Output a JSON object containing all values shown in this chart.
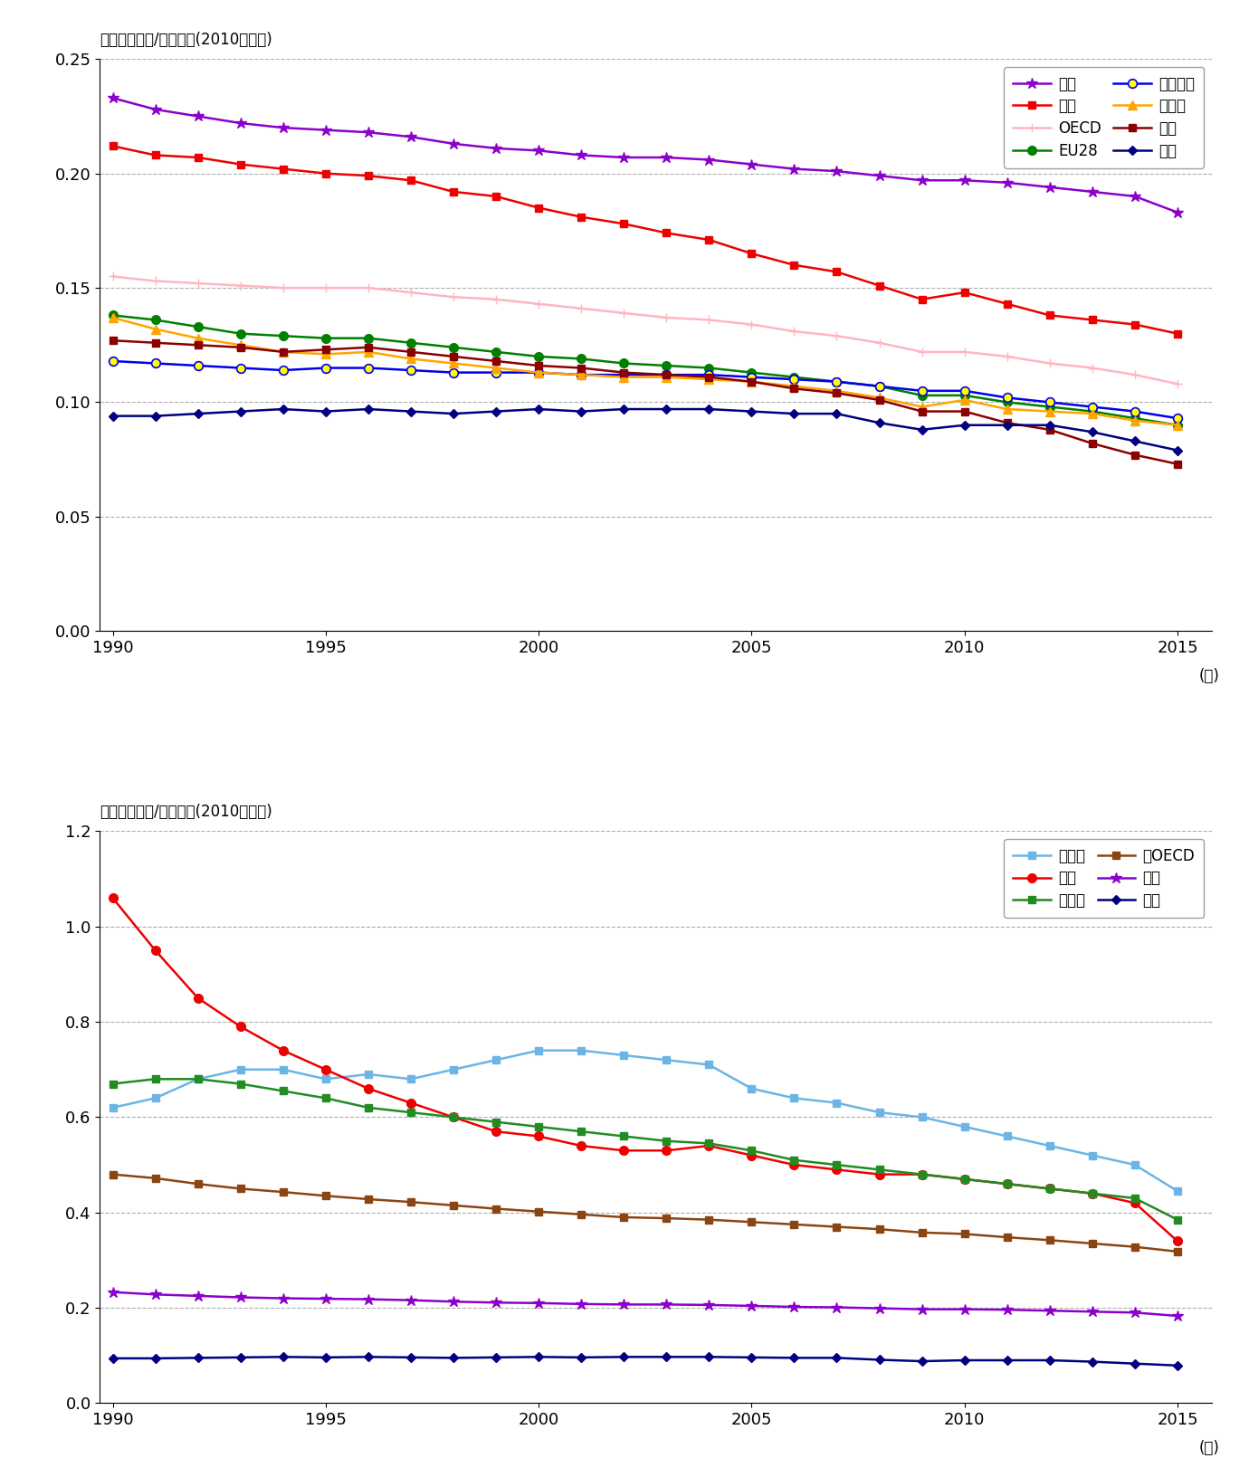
{
  "top_chart": {
    "ylabel": "石油換算トン/千米ドル(2010年基準)",
    "ylim": [
      0.0,
      0.25
    ],
    "yticks": [
      0.0,
      0.05,
      0.1,
      0.15,
      0.2,
      0.25
    ],
    "xlim": [
      1990,
      2015
    ],
    "xticks": [
      1990,
      1995,
      2000,
      2005,
      2010,
      2015
    ],
    "series": {
      "世界": {
        "color": "#8B00CC",
        "marker": "*",
        "markersize": 9,
        "linewidth": 1.8,
        "data": [
          0.233,
          0.228,
          0.225,
          0.222,
          0.22,
          0.219,
          0.218,
          0.216,
          0.213,
          0.211,
          0.21,
          0.208,
          0.207,
          0.207,
          0.206,
          0.204,
          0.202,
          0.201,
          0.199,
          0.197,
          0.197,
          0.196,
          0.194,
          0.192,
          0.19,
          0.183
        ]
      },
      "米国": {
        "color": "#EE0000",
        "marker": "s",
        "markersize": 6,
        "linewidth": 1.8,
        "data": [
          0.212,
          0.208,
          0.207,
          0.204,
          0.202,
          0.2,
          0.199,
          0.197,
          0.192,
          0.19,
          0.185,
          0.181,
          0.178,
          0.174,
          0.171,
          0.165,
          0.16,
          0.157,
          0.151,
          0.145,
          0.148,
          0.143,
          0.138,
          0.136,
          0.134,
          0.13
        ]
      },
      "OECD": {
        "color": "#FFB6C1",
        "marker": "+",
        "markersize": 7,
        "linewidth": 1.8,
        "data": [
          0.155,
          0.153,
          0.152,
          0.151,
          0.15,
          0.15,
          0.15,
          0.148,
          0.146,
          0.145,
          0.143,
          0.141,
          0.139,
          0.137,
          0.136,
          0.134,
          0.131,
          0.129,
          0.126,
          0.122,
          0.122,
          0.12,
          0.117,
          0.115,
          0.112,
          0.108
        ]
      },
      "EU28": {
        "color": "#008000",
        "marker": "o",
        "markersize": 7,
        "linewidth": 1.8,
        "data": [
          0.138,
          0.136,
          0.133,
          0.13,
          0.129,
          0.128,
          0.128,
          0.126,
          0.124,
          0.122,
          0.12,
          0.119,
          0.117,
          0.116,
          0.115,
          0.113,
          0.111,
          0.109,
          0.107,
          0.103,
          0.103,
          0.1,
          0.098,
          0.096,
          0.093,
          0.09
        ]
      },
      "フランス": {
        "color": "#0000EE",
        "marker": "o",
        "markersize": 7,
        "linewidth": 1.8,
        "markerfacecolor": "#FFFF00",
        "markeredgecolor": "#0000EE",
        "data": [
          0.118,
          0.117,
          0.116,
          0.115,
          0.114,
          0.115,
          0.115,
          0.114,
          0.113,
          0.113,
          0.113,
          0.112,
          0.112,
          0.112,
          0.112,
          0.111,
          0.11,
          0.109,
          0.107,
          0.105,
          0.105,
          0.102,
          0.1,
          0.098,
          0.096,
          0.093
        ]
      },
      "ドイツ": {
        "color": "#FFA500",
        "marker": "^",
        "markersize": 7,
        "linewidth": 1.8,
        "data": [
          0.137,
          0.132,
          0.128,
          0.125,
          0.122,
          0.121,
          0.122,
          0.119,
          0.117,
          0.115,
          0.113,
          0.112,
          0.111,
          0.111,
          0.11,
          0.109,
          0.107,
          0.105,
          0.102,
          0.098,
          0.101,
          0.097,
          0.096,
          0.095,
          0.092,
          0.09
        ]
      },
      "英国": {
        "color": "#8B0000",
        "marker": "s",
        "markersize": 6,
        "linewidth": 1.8,
        "data": [
          0.127,
          0.126,
          0.125,
          0.124,
          0.122,
          0.123,
          0.124,
          0.122,
          0.12,
          0.118,
          0.116,
          0.115,
          0.113,
          0.112,
          0.111,
          0.109,
          0.106,
          0.104,
          0.101,
          0.096,
          0.096,
          0.091,
          0.088,
          0.082,
          0.077,
          0.073
        ]
      },
      "日本": {
        "color": "#000080",
        "marker": "D",
        "markersize": 5,
        "linewidth": 1.8,
        "data": [
          0.094,
          0.094,
          0.095,
          0.096,
          0.097,
          0.096,
          0.097,
          0.096,
          0.095,
          0.096,
          0.097,
          0.096,
          0.097,
          0.097,
          0.097,
          0.096,
          0.095,
          0.095,
          0.091,
          0.088,
          0.09,
          0.09,
          0.09,
          0.087,
          0.083,
          0.079
        ]
      }
    },
    "legend_order": [
      "世界",
      "米国",
      "OECD",
      "EU28",
      "フランス",
      "ドイツ",
      "英国",
      "日本"
    ]
  },
  "bottom_chart": {
    "ylabel": "石油換算トン/千米ドル(2010年基準)",
    "ylim": [
      0.0,
      1.2
    ],
    "yticks": [
      0.0,
      0.2,
      0.4,
      0.6,
      0.8,
      1.0,
      1.2
    ],
    "xlim": [
      1990,
      2015
    ],
    "xticks": [
      1990,
      1995,
      2000,
      2005,
      2010,
      2015
    ],
    "series": {
      "ロシア": {
        "color": "#6CB4E4",
        "marker": "s",
        "markersize": 6,
        "linewidth": 1.8,
        "data": [
          0.62,
          0.64,
          0.68,
          0.7,
          0.7,
          0.68,
          0.69,
          0.68,
          0.7,
          0.72,
          0.74,
          0.74,
          0.73,
          0.72,
          0.71,
          0.66,
          0.64,
          0.63,
          0.61,
          0.6,
          0.58,
          0.56,
          0.54,
          0.52,
          0.5,
          0.445
        ]
      },
      "中国": {
        "color": "#EE0000",
        "marker": "o",
        "markersize": 7,
        "linewidth": 1.8,
        "data": [
          1.06,
          0.95,
          0.85,
          0.79,
          0.74,
          0.7,
          0.66,
          0.63,
          0.6,
          0.57,
          0.56,
          0.54,
          0.53,
          0.53,
          0.54,
          0.52,
          0.5,
          0.49,
          0.48,
          0.48,
          0.47,
          0.46,
          0.45,
          0.44,
          0.42,
          0.34
        ]
      },
      "インド": {
        "color": "#228B22",
        "marker": "s",
        "markersize": 6,
        "linewidth": 1.8,
        "data": [
          0.67,
          0.68,
          0.68,
          0.67,
          0.655,
          0.64,
          0.62,
          0.61,
          0.6,
          0.59,
          0.58,
          0.57,
          0.56,
          0.55,
          0.545,
          0.53,
          0.51,
          0.5,
          0.49,
          0.48,
          0.47,
          0.46,
          0.45,
          0.44,
          0.43,
          0.385
        ]
      },
      "非OECD": {
        "color": "#8B4513",
        "marker": "s",
        "markersize": 6,
        "linewidth": 1.8,
        "data": [
          0.48,
          0.472,
          0.46,
          0.45,
          0.443,
          0.435,
          0.428,
          0.422,
          0.415,
          0.408,
          0.402,
          0.396,
          0.39,
          0.388,
          0.385,
          0.38,
          0.375,
          0.37,
          0.365,
          0.358,
          0.355,
          0.348,
          0.342,
          0.335,
          0.328,
          0.318
        ]
      },
      "世界": {
        "color": "#8B00CC",
        "marker": "*",
        "markersize": 9,
        "linewidth": 1.8,
        "data": [
          0.233,
          0.228,
          0.225,
          0.222,
          0.22,
          0.219,
          0.218,
          0.216,
          0.213,
          0.211,
          0.21,
          0.208,
          0.207,
          0.207,
          0.206,
          0.204,
          0.202,
          0.201,
          0.199,
          0.197,
          0.197,
          0.196,
          0.194,
          0.192,
          0.19,
          0.183
        ]
      },
      "日本": {
        "color": "#000080",
        "marker": "D",
        "markersize": 5,
        "linewidth": 1.8,
        "data": [
          0.094,
          0.094,
          0.095,
          0.096,
          0.097,
          0.096,
          0.097,
          0.096,
          0.095,
          0.096,
          0.097,
          0.096,
          0.097,
          0.097,
          0.097,
          0.096,
          0.095,
          0.095,
          0.091,
          0.088,
          0.09,
          0.09,
          0.09,
          0.087,
          0.083,
          0.079
        ]
      }
    },
    "legend_order": [
      "ロシア",
      "中国",
      "インド",
      "非OECD",
      "世界",
      "日本"
    ]
  }
}
